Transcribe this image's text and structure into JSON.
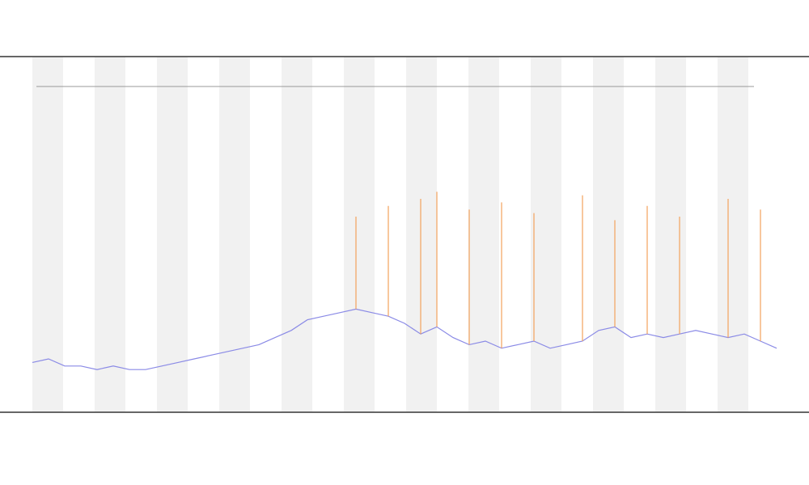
{
  "chart_data": {
    "type": "line",
    "ylim": [
      0,
      100
    ],
    "series": [
      {
        "color": "#8a8ae6",
        "values": [
          14,
          15,
          13,
          13,
          12,
          13,
          12,
          12,
          13,
          14,
          15,
          16,
          17,
          18,
          19,
          21,
          23,
          26,
          27,
          28,
          29,
          28,
          27,
          25,
          22,
          24,
          21,
          19,
          20,
          18,
          19,
          20,
          18,
          19,
          20,
          23,
          24,
          21,
          22,
          21,
          22,
          23,
          22,
          21,
          22,
          20,
          18
        ]
      },
      {
        "color": "#f2a25c",
        "style": "spike",
        "values": [
          null,
          null,
          null,
          null,
          null,
          null,
          null,
          null,
          null,
          null,
          null,
          null,
          null,
          null,
          null,
          null,
          null,
          null,
          null,
          null,
          55,
          null,
          58,
          null,
          60,
          62,
          null,
          57,
          null,
          59,
          null,
          56,
          null,
          null,
          61,
          null,
          54,
          null,
          58,
          null,
          55,
          null,
          null,
          60,
          null,
          57,
          null
        ]
      }
    ]
  }
}
